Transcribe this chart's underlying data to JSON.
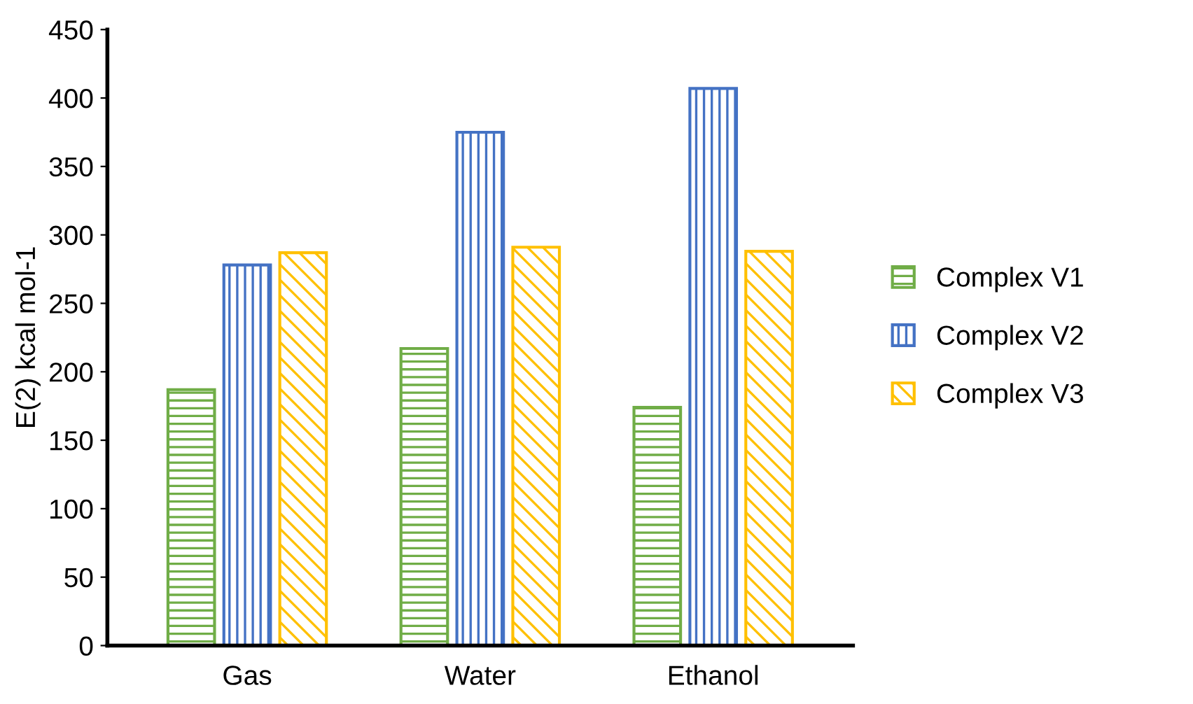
{
  "chart_data": {
    "type": "bar",
    "ylabel": "E(2) kcal mol-1",
    "categories": [
      "Gas",
      "Water",
      "Ethanol"
    ],
    "series": [
      {
        "name": "Complex V1",
        "color": "#70ad47",
        "values": [
          187,
          217,
          174
        ]
      },
      {
        "name": "Complex V2",
        "color": "#4472c4",
        "values": [
          278,
          375,
          407
        ]
      },
      {
        "name": "Complex V3",
        "color": "#ffc000",
        "values": [
          287,
          291,
          288
        ]
      }
    ],
    "ylim": [
      0,
      450
    ],
    "yticks": [
      0,
      50,
      100,
      150,
      200,
      250,
      300,
      350,
      400,
      450
    ],
    "grid": false,
    "legend": "right"
  }
}
